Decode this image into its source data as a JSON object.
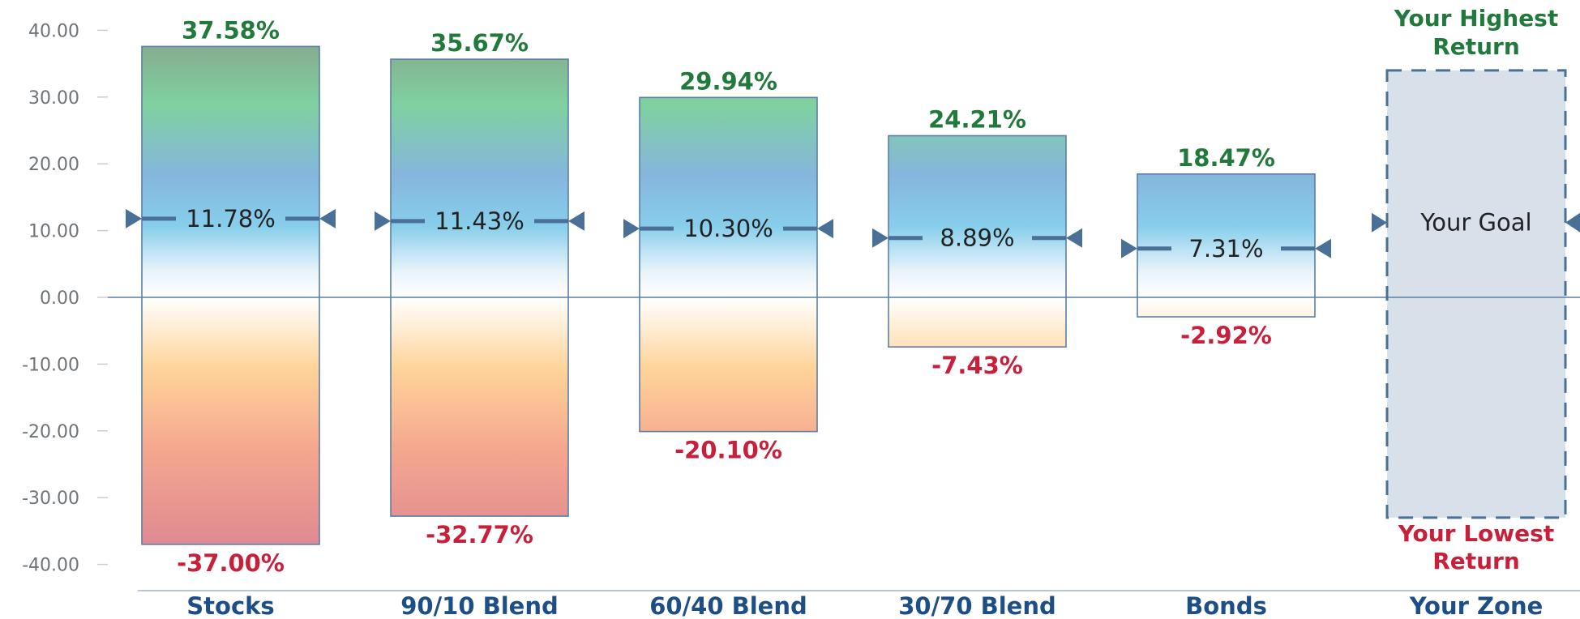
{
  "chart_data": {
    "type": "bar",
    "ylim": [
      -40,
      40
    ],
    "yticks": [
      "40.00",
      "30.00",
      "20.00",
      "10.00",
      "0.00",
      "-10.00",
      "-20.00",
      "-30.00",
      "-40.00"
    ],
    "ytick_values": [
      40,
      30,
      20,
      10,
      0,
      -10,
      -20,
      -30,
      -40
    ],
    "categories": [
      "Stocks",
      "90/10 Blend",
      "60/40 Blend",
      "30/70 Blend",
      "Bonds"
    ],
    "series": [
      {
        "values": [
          37.58,
          35.67,
          29.94,
          24.21,
          18.47
        ]
      },
      {
        "values": [
          -37.0,
          -32.77,
          -20.1,
          -7.43,
          -2.92
        ]
      },
      {
        "values": [
          11.78,
          11.43,
          10.3,
          8.89,
          7.31
        ]
      }
    ],
    "high_labels": [
      "37.58%",
      "35.67%",
      "29.94%",
      "24.21%",
      "18.47%"
    ],
    "low_labels": [
      "-37.00%",
      "-32.77%",
      "-20.10%",
      "-7.43%",
      "-2.92%"
    ],
    "avg_labels": [
      "11.78%",
      "11.43%",
      "10.30%",
      "8.89%",
      "7.31%"
    ],
    "zone": {
      "category": "Your Zone",
      "high_line1": "Your Highest",
      "high_line2": "Return",
      "low_line1": "Your Lowest",
      "low_line2": "Return",
      "goal": "Your Goal",
      "high_value": 34,
      "low_value": -33,
      "goal_value": 11.2
    },
    "colors": {
      "positive_top": "#86ab8f",
      "positive_green": "#7fd1a0",
      "positive_blue": "#86b6dd",
      "positive_sky": "#87ceeb",
      "negative_orange": "#ffd49a",
      "negative_salmon": "#f4a78e",
      "negative_rose": "#de8892",
      "bar_border": "#5a7fa6",
      "marker": "#4a7098",
      "zero_line": "#5a7fa6",
      "zone_fill": "#d8e1ea",
      "zone_border": "#4a7098",
      "high_text": "#217a3c",
      "low_text": "#c8203a",
      "category_text": "#1d4f86"
    }
  }
}
